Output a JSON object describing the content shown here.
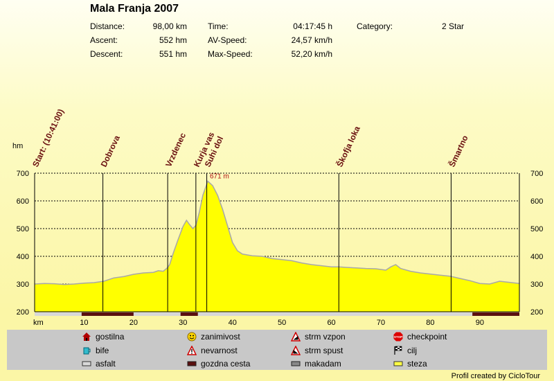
{
  "title": "Mala Franja 2007",
  "stats": {
    "distance_label": "Distance:",
    "distance_value": "98,00 km",
    "ascent_label": "Ascent:",
    "ascent_value": "552 hm",
    "descent_label": "Descent:",
    "descent_value": "551 hm",
    "time_label": "Time:",
    "time_value": "04:17:45 h",
    "avspeed_label": "AV-Speed:",
    "avspeed_value": "24,57 km/h",
    "maxspeed_label": "Max-Speed:",
    "maxspeed_value": "52,20 km/h",
    "category_label": "Category:",
    "category_value": "2 Star"
  },
  "chart_data": {
    "type": "area",
    "ylabel": "hm",
    "xlabel": "km",
    "xlim": [
      0,
      98
    ],
    "ylim": [
      200,
      700
    ],
    "xticks": [
      10,
      20,
      30,
      40,
      50,
      60,
      70,
      80,
      90
    ],
    "yticks": [
      200,
      300,
      400,
      500,
      600,
      700
    ],
    "fill_color": "#ffff00",
    "grid": true,
    "peak_label": "671 m",
    "peak": {
      "x": 35,
      "y": 671
    },
    "waypoints": [
      {
        "name": "Start: (10:41:00)",
        "x": 0
      },
      {
        "name": "Dobrova",
        "x": 13.8
      },
      {
        "name": "Vrzdenec",
        "x": 26.9
      },
      {
        "name": "Kurja vas",
        "x": 32.6
      },
      {
        "name": "Suhi dol",
        "x": 34.8
      },
      {
        "name": "Škofja loka",
        "x": 61.5
      },
      {
        "name": "Šmartno",
        "x": 84.2
      }
    ],
    "profile": [
      [
        0,
        300
      ],
      [
        2,
        302
      ],
      [
        4,
        301
      ],
      [
        6,
        298
      ],
      [
        8,
        300
      ],
      [
        10,
        303
      ],
      [
        12,
        305
      ],
      [
        14,
        310
      ],
      [
        16,
        322
      ],
      [
        18,
        327
      ],
      [
        20,
        335
      ],
      [
        22,
        340
      ],
      [
        24,
        342
      ],
      [
        25,
        348
      ],
      [
        26,
        346
      ],
      [
        26.8,
        358
      ],
      [
        27.3,
        370
      ],
      [
        28,
        410
      ],
      [
        29,
        460
      ],
      [
        30,
        508
      ],
      [
        30.7,
        530
      ],
      [
        31.3,
        515
      ],
      [
        32,
        500
      ],
      [
        32.6,
        512
      ],
      [
        33.3,
        560
      ],
      [
        34,
        620
      ],
      [
        35,
        671
      ],
      [
        36,
        655
      ],
      [
        37,
        620
      ],
      [
        38,
        570
      ],
      [
        39,
        510
      ],
      [
        40,
        450
      ],
      [
        41,
        420
      ],
      [
        42,
        408
      ],
      [
        44,
        402
      ],
      [
        46,
        400
      ],
      [
        48,
        392
      ],
      [
        50,
        388
      ],
      [
        52,
        384
      ],
      [
        54,
        376
      ],
      [
        56,
        370
      ],
      [
        58,
        366
      ],
      [
        60,
        362
      ],
      [
        61.5,
        362
      ],
      [
        63,
        360
      ],
      [
        65,
        358
      ],
      [
        67,
        356
      ],
      [
        69,
        355
      ],
      [
        71,
        350
      ],
      [
        72,
        362
      ],
      [
        73,
        370
      ],
      [
        74,
        356
      ],
      [
        76,
        346
      ],
      [
        78,
        340
      ],
      [
        80,
        336
      ],
      [
        82,
        332
      ],
      [
        84,
        328
      ],
      [
        86,
        320
      ],
      [
        88,
        312
      ],
      [
        90,
        302
      ],
      [
        92,
        300
      ],
      [
        94,
        310
      ],
      [
        96,
        306
      ],
      [
        98,
        302
      ]
    ],
    "surface_segments": [
      {
        "type": "gozdna cesta",
        "from": 9.5,
        "to": 20
      },
      {
        "type": "gozdna cesta",
        "from": 29.5,
        "to": 33
      },
      {
        "type": "gozdna cesta",
        "from": 88.5,
        "to": 98
      }
    ]
  },
  "legend": {
    "gostilna": "gostilna",
    "bife": "bife",
    "asfalt": "asfalt",
    "zanimivost": "zanimivost",
    "nevarnost": "nevarnost",
    "gozdna_cesta": "gozdna cesta",
    "strm_vzpon": "strm vzpon",
    "strm_spust": "strm spust",
    "makadam": "makadam",
    "checkpoint": "checkpoint",
    "cilj": "cilj",
    "steza": "steza",
    "stop_text": "STOP"
  },
  "colors": {
    "profile_fill": "#ffff00",
    "profile_stroke": "#a8a8a8",
    "waypoint_text": "#6a1010",
    "peak_text": "#b01010",
    "legend_bg": "#c8c8c8",
    "gozdna_cesta": "#5a1010"
  },
  "credit": "Profil created by CicloTour"
}
